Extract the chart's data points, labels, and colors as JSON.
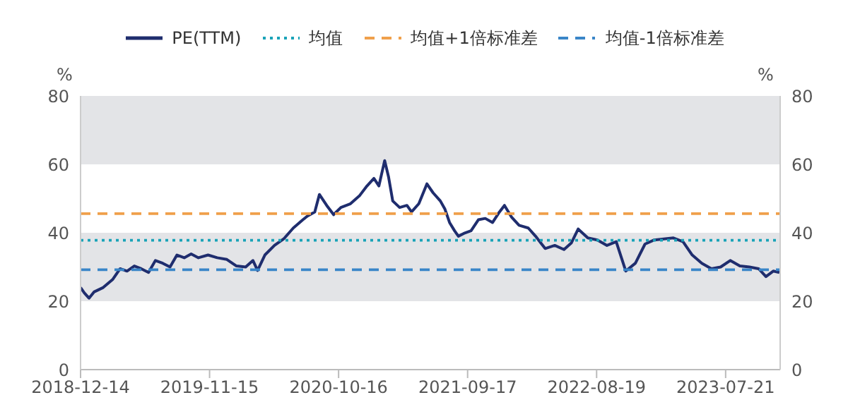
{
  "chart_data": {
    "type": "line",
    "ylabel": "%",
    "y2label": "%",
    "xlim": [
      "2018-12-14",
      "2023-12-10"
    ],
    "xticks": [
      "2018-12-14",
      "2019-11-15",
      "2020-10-16",
      "2021-09-17",
      "2022-08-19",
      "2023-07-21"
    ],
    "ylim": [
      0,
      80
    ],
    "yticks": [
      0,
      20,
      40,
      60,
      80
    ],
    "y2lim": [
      0,
      80
    ],
    "y2ticks": [
      0,
      20,
      40,
      60,
      80
    ],
    "legend": "top",
    "marker": "none",
    "bands": [
      {
        "axis": "y",
        "from": 20,
        "to": 40,
        "color": "#e3e4e7"
      },
      {
        "axis": "y",
        "from": 60,
        "to": 80,
        "color": "#e3e4e7"
      }
    ],
    "series": [
      {
        "name": "PE(TTM)",
        "color": "#1f2d6e",
        "line_style": "solid",
        "x": [
          "2018-12-14",
          "2018-12-24",
          "2019-01-05",
          "2019-01-18",
          "2019-02-11",
          "2019-03-08",
          "2019-03-27",
          "2019-04-14",
          "2019-05-03",
          "2019-05-21",
          "2019-06-09",
          "2019-06-27",
          "2019-07-16",
          "2019-08-04",
          "2019-08-22",
          "2019-09-10",
          "2019-09-28",
          "2019-10-17",
          "2019-11-11",
          "2019-12-05",
          "2019-12-30",
          "2020-01-24",
          "2020-02-17",
          "2020-03-07",
          "2020-03-19",
          "2020-04-07",
          "2020-05-02",
          "2020-05-26",
          "2020-06-20",
          "2020-07-15",
          "2020-07-27",
          "2020-08-15",
          "2020-08-27",
          "2020-09-15",
          "2020-10-03",
          "2020-10-22",
          "2020-11-16",
          "2020-12-10",
          "2020-12-29",
          "2021-01-16",
          "2021-01-29",
          "2021-02-13",
          "2021-02-23",
          "2021-03-06",
          "2021-03-24",
          "2021-04-12",
          "2021-04-24",
          "2021-05-13",
          "2021-06-03",
          "2021-06-19",
          "2021-07-08",
          "2021-07-20",
          "2021-08-01",
          "2021-08-14",
          "2021-08-24",
          "2021-09-07",
          "2021-09-26",
          "2021-10-15",
          "2021-11-02",
          "2021-11-21",
          "2021-12-09",
          "2021-12-22",
          "2022-01-10",
          "2022-01-29",
          "2022-02-22",
          "2022-03-13",
          "2022-04-07",
          "2022-05-02",
          "2022-05-26",
          "2022-06-14",
          "2022-07-02",
          "2022-07-27",
          "2022-08-21",
          "2022-09-15",
          "2022-10-09",
          "2022-11-03",
          "2022-11-28",
          "2022-12-23",
          "2023-01-16",
          "2023-02-10",
          "2023-03-07",
          "2023-04-01",
          "2023-04-25",
          "2023-05-20",
          "2023-06-14",
          "2023-07-08",
          "2023-08-02",
          "2023-08-27",
          "2023-09-21",
          "2023-10-15",
          "2023-11-03",
          "2023-11-22",
          "2023-12-08"
        ],
        "values": [
          24,
          22.4,
          20.9,
          22.7,
          24,
          26.4,
          29.5,
          28.8,
          30.3,
          29.5,
          28.4,
          31.9,
          31.1,
          30,
          33.5,
          32.7,
          33.8,
          32.7,
          33.5,
          32.7,
          32.2,
          30.3,
          30,
          31.9,
          29,
          33.5,
          36.3,
          38.2,
          41.4,
          43.8,
          44.9,
          46.1,
          51.2,
          48,
          45.3,
          47.4,
          48.5,
          50.9,
          53.7,
          55.9,
          53.7,
          61.1,
          56.4,
          49.3,
          47.4,
          48,
          46.1,
          48.5,
          54.3,
          51.7,
          49.3,
          46.9,
          43,
          40.6,
          39,
          39.8,
          40.6,
          43.8,
          44.2,
          43,
          46.1,
          48,
          44.5,
          42.2,
          41.4,
          39,
          35.4,
          36.3,
          35.1,
          37,
          41.1,
          38.5,
          37.9,
          36.3,
          37.4,
          28.8,
          31.1,
          36.7,
          37.9,
          38.2,
          38.5,
          37.4,
          33.5,
          31.1,
          29.5,
          30,
          31.9,
          30.3,
          30,
          29.5,
          27.2,
          28.8,
          28.4
        ]
      },
      {
        "name": "均值",
        "color": "#1aa3b8",
        "line_style": "dotted",
        "x": [
          "2018-12-14",
          "2023-12-10"
        ],
        "values": [
          37.8,
          37.8
        ]
      },
      {
        "name": "均值+1倍标准差",
        "color": "#f0a04b",
        "line_style": "dashed",
        "x": [
          "2018-12-14",
          "2023-12-10"
        ],
        "values": [
          45.6,
          45.6
        ]
      },
      {
        "name": "均值-1倍标准差",
        "color": "#3a86c8",
        "line_style": "dashed",
        "x": [
          "2018-12-14",
          "2023-12-10"
        ],
        "values": [
          29.2,
          29.2
        ]
      }
    ]
  }
}
